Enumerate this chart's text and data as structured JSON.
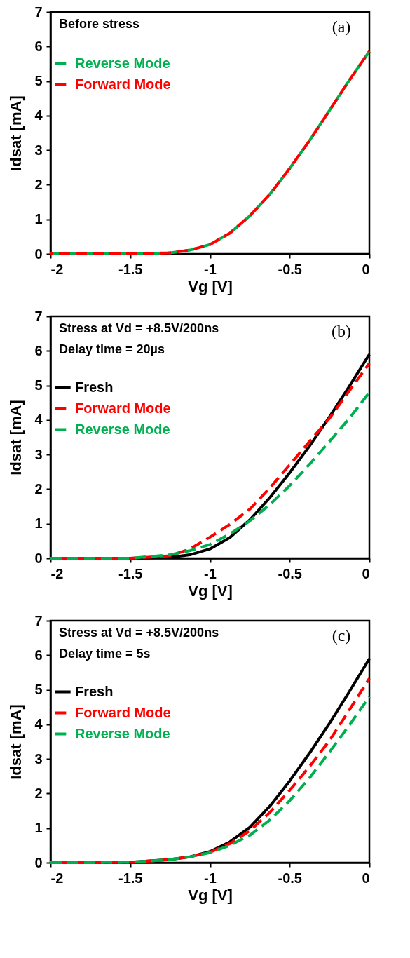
{
  "chart_data": [
    {
      "type": "line",
      "annotations": [
        "Before stress",
        "(a)"
      ],
      "xlabel": "Vg [V]",
      "ylabel": "Idsat [mA]",
      "xlim": [
        -2,
        0
      ],
      "xticks": [
        -2,
        -1.5,
        -1,
        -0.5,
        0
      ],
      "ylim": [
        0,
        7
      ],
      "yticks": [
        0,
        1,
        2,
        3,
        4,
        5,
        6,
        7
      ],
      "legend": "top left",
      "grid": false,
      "marker": "none",
      "x": [
        -2,
        -1.75,
        -1.5,
        -1.25,
        -1.125,
        -1,
        -0.875,
        -0.75,
        -0.625,
        -0.5,
        -0.375,
        -0.25,
        -0.125,
        0
      ],
      "series": [
        {
          "name": "Reverse Mode",
          "color": "#00b050",
          "line_style": "dashed",
          "values": [
            0,
            0,
            0,
            0.03,
            0.11,
            0.27,
            0.6,
            1.1,
            1.72,
            2.47,
            3.28,
            4.15,
            5.03,
            5.86
          ]
        },
        {
          "name": "Forward Mode",
          "color": "#ff0000",
          "line_style": "dashed",
          "values": [
            0,
            0,
            0,
            0.03,
            0.11,
            0.27,
            0.6,
            1.1,
            1.72,
            2.47,
            3.28,
            4.15,
            5.03,
            5.86
          ]
        }
      ]
    },
    {
      "type": "line",
      "annotations": [
        "Stress at Vd = +8.5V/200ns",
        "Delay time = 20µs",
        "(b)"
      ],
      "xlabel": "Vg [V]",
      "ylabel": "Idsat [mA]",
      "xlim": [
        -2,
        0
      ],
      "xticks": [
        -2,
        -1.5,
        -1,
        -0.5,
        0
      ],
      "ylim": [
        0,
        7
      ],
      "yticks": [
        0,
        1,
        2,
        3,
        4,
        5,
        6,
        7
      ],
      "legend": "top left",
      "grid": false,
      "marker": "none",
      "x": [
        -2,
        -1.75,
        -1.5,
        -1.25,
        -1.125,
        -1,
        -0.875,
        -0.75,
        -0.625,
        -0.5,
        -0.375,
        -0.25,
        -0.125,
        0
      ],
      "series": [
        {
          "name": "Fresh",
          "color": "#000000",
          "line_style": "solid",
          "values": [
            0,
            0,
            0,
            0.03,
            0.1,
            0.27,
            0.6,
            1.11,
            1.75,
            2.47,
            3.25,
            4.09,
            4.98,
            5.9
          ]
        },
        {
          "name": "Forward Mode",
          "color": "#ff0000",
          "line_style": "dashed",
          "values": [
            0,
            0,
            0,
            0.07,
            0.27,
            0.61,
            0.98,
            1.42,
            2.03,
            2.7,
            3.38,
            4.05,
            4.85,
            5.64
          ]
        },
        {
          "name": "Reverse Mode",
          "color": "#00b050",
          "line_style": "dashed",
          "values": [
            0,
            0,
            0,
            0.1,
            0.22,
            0.4,
            0.7,
            1.08,
            1.55,
            2.1,
            2.72,
            3.38,
            4.05,
            4.8
          ]
        }
      ]
    },
    {
      "type": "line",
      "annotations": [
        "Stress at Vd = +8.5V/200ns",
        "Delay time = 5s",
        "(c)"
      ],
      "xlabel": "Vg [V]",
      "ylabel": "Idsat [mA]",
      "xlim": [
        -2,
        0
      ],
      "xticks": [
        -2,
        -1.5,
        -1,
        -0.5,
        0
      ],
      "ylim": [
        0,
        7
      ],
      "yticks": [
        0,
        1,
        2,
        3,
        4,
        5,
        6,
        7
      ],
      "legend": "top left",
      "grid": false,
      "marker": "none",
      "x": [
        -2,
        -1.75,
        -1.5,
        -1.25,
        -1.125,
        -1,
        -0.875,
        -0.75,
        -0.625,
        -0.5,
        -0.375,
        -0.25,
        -0.125,
        0
      ],
      "series": [
        {
          "name": "Fresh",
          "color": "#000000",
          "line_style": "solid",
          "values": [
            0,
            0,
            0.01,
            0.09,
            0.17,
            0.32,
            0.6,
            1.02,
            1.63,
            2.36,
            3.17,
            4.03,
            4.95,
            5.9
          ]
        },
        {
          "name": "Forward Mode",
          "color": "#ff0000",
          "line_style": "dashed",
          "values": [
            0,
            0,
            0.01,
            0.09,
            0.17,
            0.3,
            0.55,
            0.92,
            1.45,
            2.09,
            2.78,
            3.53,
            4.42,
            5.33
          ]
        },
        {
          "name": "Reverse Mode",
          "color": "#00b050",
          "line_style": "dashed",
          "values": [
            0,
            0,
            0.01,
            0.09,
            0.17,
            0.29,
            0.5,
            0.79,
            1.23,
            1.79,
            2.45,
            3.2,
            3.98,
            4.8
          ]
        }
      ]
    }
  ]
}
